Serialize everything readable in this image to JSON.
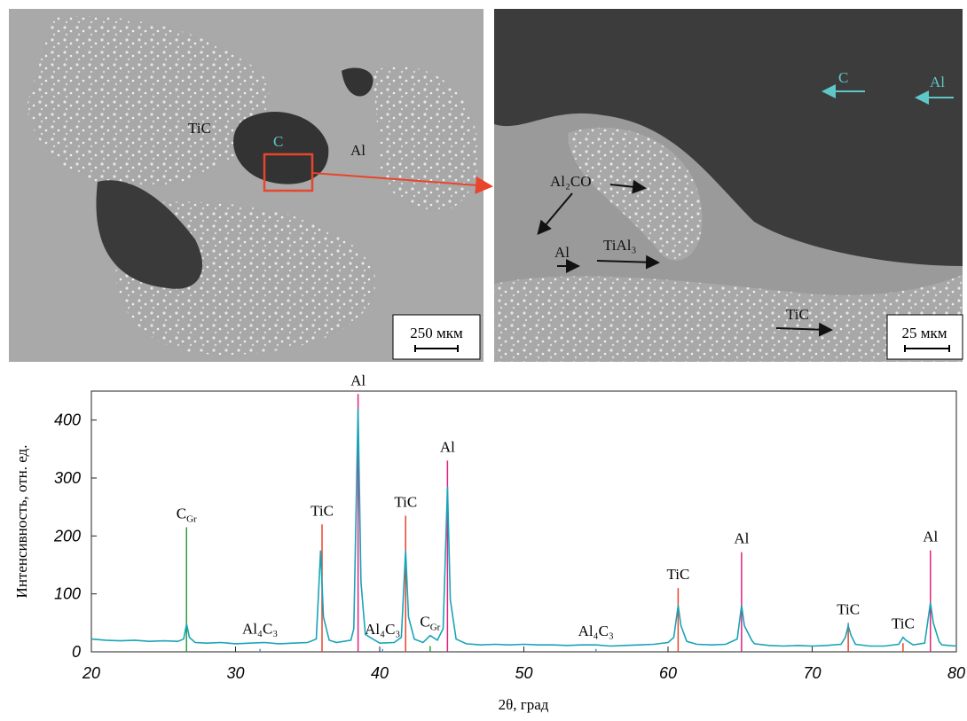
{
  "images": [
    {
      "labels": [
        "TiC",
        "C",
        "Al"
      ],
      "scale": "250 мкм"
    },
    {
      "labels": [
        "Al₂CO",
        "Al",
        "TiAl₃",
        "TiC",
        "C",
        "Al"
      ],
      "scale": "25 мкм"
    }
  ],
  "chart_data": {
    "type": "line",
    "xlabel": "2θ, град",
    "ylabel": "Интенсивность, отн. ед.",
    "xlim": [
      20,
      80
    ],
    "xticks": [
      20,
      30,
      40,
      50,
      60,
      70,
      80
    ],
    "ylim": [
      0,
      450
    ],
    "yticks": [
      0,
      100,
      200,
      300,
      400
    ],
    "color": "#1aa3b8",
    "x": [
      20,
      21,
      22,
      23,
      24,
      25,
      26,
      26.4,
      26.6,
      26.8,
      27.2,
      28,
      29,
      30,
      31,
      32,
      33,
      34,
      35,
      35.6,
      35.9,
      36.1,
      36.5,
      37,
      38,
      38.2,
      38.5,
      38.7,
      39,
      40,
      41,
      41.5,
      41.8,
      42.0,
      42.4,
      43,
      43.5,
      44,
      44.4,
      44.7,
      44.9,
      45.3,
      46,
      47,
      48,
      49,
      50,
      51,
      52,
      53,
      54,
      55,
      56,
      57,
      58,
      59,
      60,
      60.4,
      60.7,
      60.9,
      61.3,
      62,
      63,
      64,
      64.8,
      65.1,
      65.3,
      65.8,
      66,
      67,
      68,
      69,
      70,
      71,
      72,
      72.3,
      72.5,
      72.7,
      73,
      74,
      75,
      76,
      76.3,
      76.5,
      77,
      77.8,
      78.2,
      78.4,
      78.8,
      79,
      80
    ],
    "values": [
      22,
      20,
      19,
      20,
      18,
      19,
      18,
      22,
      48,
      25,
      16,
      15,
      16,
      14,
      15,
      16,
      14,
      15,
      16,
      22,
      175,
      60,
      20,
      16,
      20,
      40,
      420,
      120,
      30,
      15,
      16,
      25,
      175,
      60,
      22,
      16,
      28,
      20,
      40,
      285,
      90,
      22,
      14,
      12,
      13,
      12,
      13,
      12,
      12,
      11,
      12,
      12,
      10,
      11,
      12,
      13,
      16,
      25,
      80,
      45,
      18,
      13,
      12,
      13,
      22,
      80,
      45,
      20,
      14,
      11,
      10,
      11,
      10,
      11,
      13,
      25,
      45,
      28,
      13,
      10,
      10,
      13,
      25,
      20,
      12,
      15,
      85,
      50,
      18,
      12,
      10
    ],
    "references": [
      {
        "label": {
          "text": "C",
          "sub": "Gr"
        },
        "color": "#2e9e3e",
        "x": [
          26.6,
          43.5
        ],
        "values": [
          215,
          10
        ]
      },
      {
        "label": {
          "text": "Al₄C₃"
        },
        "color": "#4a90c8",
        "x": [
          31.7,
          40.2,
          55.0
        ],
        "values": [
          5,
          5,
          5
        ]
      },
      {
        "label": {
          "text": "TiC"
        },
        "color": "#e8452c",
        "x": [
          36.0,
          41.8,
          60.7,
          72.5,
          76.3
        ],
        "values": [
          220,
          235,
          110,
          50,
          15
        ]
      },
      {
        "label": {
          "text": "Al"
        },
        "color": "#e0217f",
        "x": [
          38.5,
          44.7,
          65.1,
          78.2
        ],
        "values": [
          445,
          330,
          172,
          175
        ]
      }
    ]
  }
}
